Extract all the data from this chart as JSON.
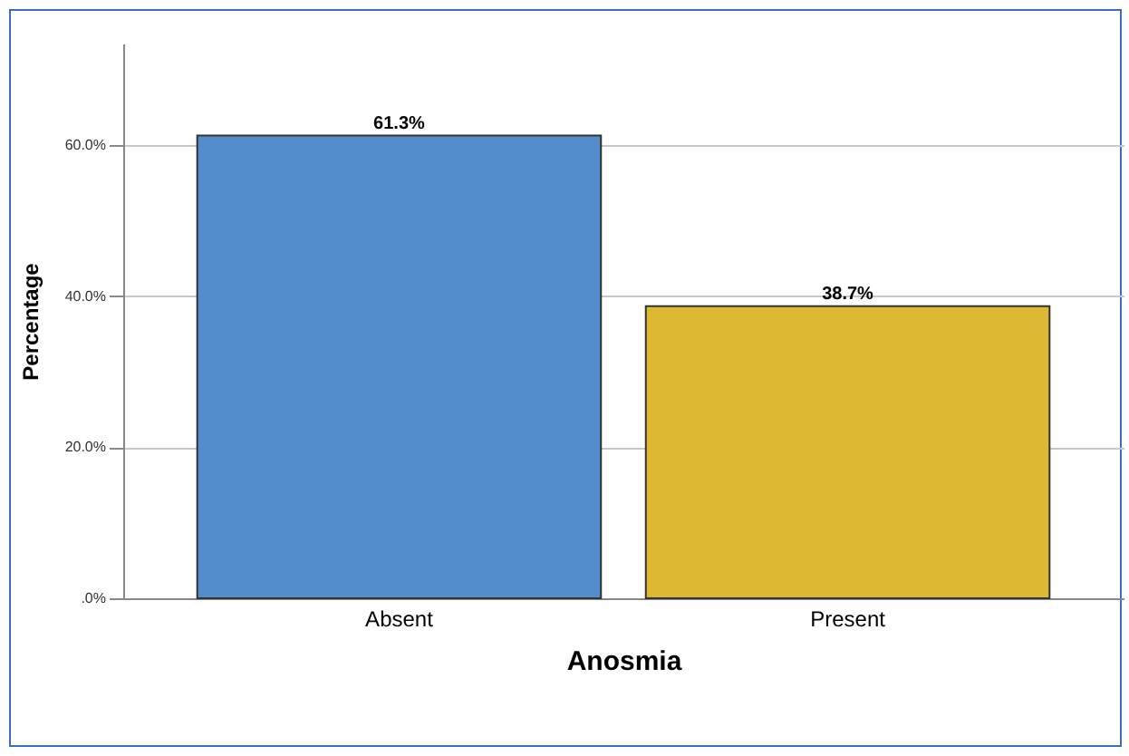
{
  "chart_data": {
    "type": "bar",
    "xlabel": "Anosmia",
    "ylabel": "Percentage",
    "categories": [
      "Absent",
      "Present"
    ],
    "values": [
      61.3,
      38.7
    ],
    "colors": [
      "#538dcb",
      "#dcb833"
    ],
    "value_labels": [
      "61.3%",
      "38.7%"
    ],
    "ylim": [
      0,
      73.5
    ],
    "yticks": [
      {
        "value": 0,
        "label": ".0%"
      },
      {
        "value": 20,
        "label": "20.0%"
      },
      {
        "value": 40,
        "label": "40.0%"
      },
      {
        "value": 60,
        "label": "60.0%"
      }
    ],
    "grid": "y"
  }
}
